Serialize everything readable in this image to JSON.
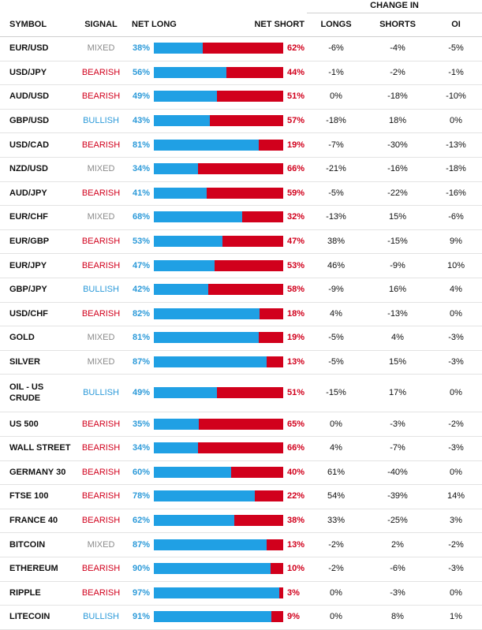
{
  "header": {
    "change_in": "CHANGE IN",
    "symbol": "SYMBOL",
    "signal": "SIGNAL",
    "net_long": "NET LONG",
    "net_short": "NET SHORT",
    "longs": "LONGS",
    "shorts": "SHORTS",
    "oi": "OI"
  },
  "colors": {
    "long": "#20a0e4",
    "short": "#d1001c",
    "mixed": "#8b8b8b",
    "bullish": "#2c9ad9",
    "bearish": "#d1001c"
  },
  "rows": [
    {
      "symbol": "EUR/USD",
      "signal": "MIXED",
      "net_long": "38%",
      "net_short": "62%",
      "longs": "-6%",
      "shorts": "-4%",
      "oi": "-5%"
    },
    {
      "symbol": "USD/JPY",
      "signal": "BEARISH",
      "net_long": "56%",
      "net_short": "44%",
      "longs": "-1%",
      "shorts": "-2%",
      "oi": "-1%"
    },
    {
      "symbol": "AUD/USD",
      "signal": "BEARISH",
      "net_long": "49%",
      "net_short": "51%",
      "longs": "0%",
      "shorts": "-18%",
      "oi": "-10%"
    },
    {
      "symbol": "GBP/USD",
      "signal": "BULLISH",
      "net_long": "43%",
      "net_short": "57%",
      "longs": "-18%",
      "shorts": "18%",
      "oi": "0%"
    },
    {
      "symbol": "USD/CAD",
      "signal": "BEARISH",
      "net_long": "81%",
      "net_short": "19%",
      "longs": "-7%",
      "shorts": "-30%",
      "oi": "-13%"
    },
    {
      "symbol": "NZD/USD",
      "signal": "MIXED",
      "net_long": "34%",
      "net_short": "66%",
      "longs": "-21%",
      "shorts": "-16%",
      "oi": "-18%"
    },
    {
      "symbol": "AUD/JPY",
      "signal": "BEARISH",
      "net_long": "41%",
      "net_short": "59%",
      "longs": "-5%",
      "shorts": "-22%",
      "oi": "-16%"
    },
    {
      "symbol": "EUR/CHF",
      "signal": "MIXED",
      "net_long": "68%",
      "net_short": "32%",
      "longs": "-13%",
      "shorts": "15%",
      "oi": "-6%"
    },
    {
      "symbol": "EUR/GBP",
      "signal": "BEARISH",
      "net_long": "53%",
      "net_short": "47%",
      "longs": "38%",
      "shorts": "-15%",
      "oi": "9%"
    },
    {
      "symbol": "EUR/JPY",
      "signal": "BEARISH",
      "net_long": "47%",
      "net_short": "53%",
      "longs": "46%",
      "shorts": "-9%",
      "oi": "10%"
    },
    {
      "symbol": "GBP/JPY",
      "signal": "BULLISH",
      "net_long": "42%",
      "net_short": "58%",
      "longs": "-9%",
      "shorts": "16%",
      "oi": "4%"
    },
    {
      "symbol": "USD/CHF",
      "signal": "BEARISH",
      "net_long": "82%",
      "net_short": "18%",
      "longs": "4%",
      "shorts": "-13%",
      "oi": "0%"
    },
    {
      "symbol": "GOLD",
      "signal": "MIXED",
      "net_long": "81%",
      "net_short": "19%",
      "longs": "-5%",
      "shorts": "4%",
      "oi": "-3%"
    },
    {
      "symbol": "SILVER",
      "signal": "MIXED",
      "net_long": "87%",
      "net_short": "13%",
      "longs": "-5%",
      "shorts": "15%",
      "oi": "-3%"
    },
    {
      "symbol": "OIL - US CRUDE",
      "signal": "BULLISH",
      "net_long": "49%",
      "net_short": "51%",
      "longs": "-15%",
      "shorts": "17%",
      "oi": "0%"
    },
    {
      "symbol": "US 500",
      "signal": "BEARISH",
      "net_long": "35%",
      "net_short": "65%",
      "longs": "0%",
      "shorts": "-3%",
      "oi": "-2%"
    },
    {
      "symbol": "WALL STREET",
      "signal": "BEARISH",
      "net_long": "34%",
      "net_short": "66%",
      "longs": "4%",
      "shorts": "-7%",
      "oi": "-3%"
    },
    {
      "symbol": "GERMANY 30",
      "signal": "BEARISH",
      "net_long": "60%",
      "net_short": "40%",
      "longs": "61%",
      "shorts": "-40%",
      "oi": "0%"
    },
    {
      "symbol": "FTSE 100",
      "signal": "BEARISH",
      "net_long": "78%",
      "net_short": "22%",
      "longs": "54%",
      "shorts": "-39%",
      "oi": "14%"
    },
    {
      "symbol": "FRANCE 40",
      "signal": "BEARISH",
      "net_long": "62%",
      "net_short": "38%",
      "longs": "33%",
      "shorts": "-25%",
      "oi": "3%"
    },
    {
      "symbol": "BITCOIN",
      "signal": "MIXED",
      "net_long": "87%",
      "net_short": "13%",
      "longs": "-2%",
      "shorts": "2%",
      "oi": "-2%"
    },
    {
      "symbol": "ETHEREUM",
      "signal": "BEARISH",
      "net_long": "90%",
      "net_short": "10%",
      "longs": "-2%",
      "shorts": "-6%",
      "oi": "-3%"
    },
    {
      "symbol": "RIPPLE",
      "signal": "BEARISH",
      "net_long": "97%",
      "net_short": "3%",
      "longs": "0%",
      "shorts": "-3%",
      "oi": "0%"
    },
    {
      "symbol": "LITECOIN",
      "signal": "BULLISH",
      "net_long": "91%",
      "net_short": "9%",
      "longs": "0%",
      "shorts": "8%",
      "oi": "1%"
    }
  ]
}
